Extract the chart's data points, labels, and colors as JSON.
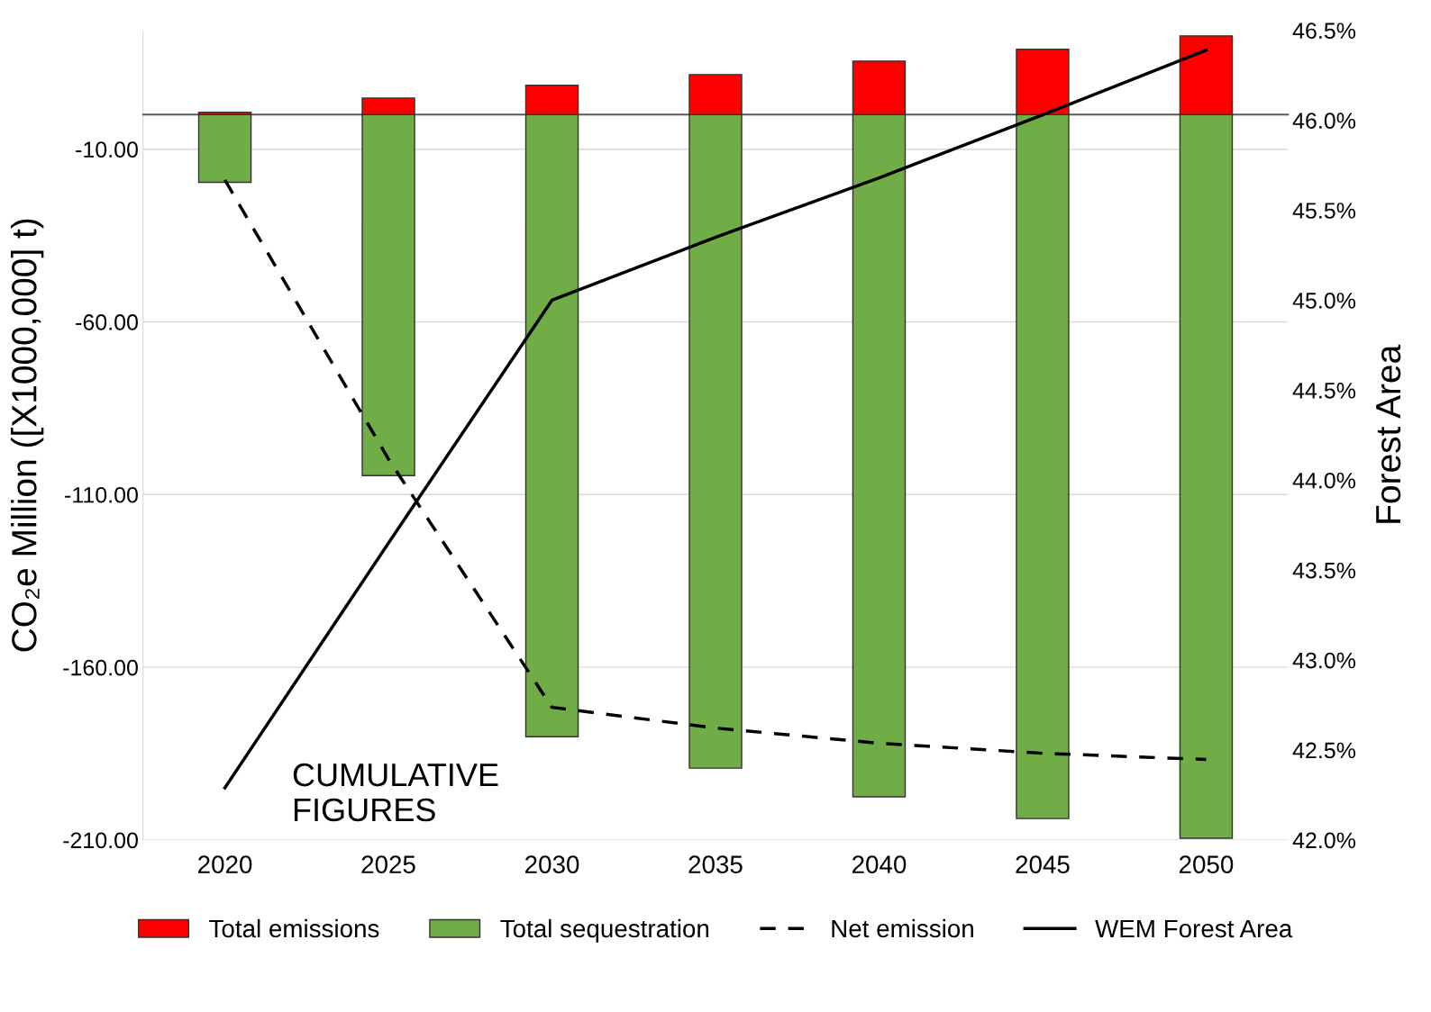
{
  "chart_data": {
    "type": "bar",
    "stacked": true,
    "categories": [
      "2020",
      "2025",
      "2030",
      "2035",
      "2040",
      "2045",
      "2050"
    ],
    "ylabel": "CO₂e Million ([X1000,000] t)",
    "y2label": "Forest Area",
    "ylim": [
      -210,
      24.4
    ],
    "yticks": [
      {
        "value": -10,
        "label": "-10.00"
      },
      {
        "value": -60,
        "label": "-60.00"
      },
      {
        "value": -110,
        "label": "-110.00"
      },
      {
        "value": -160,
        "label": "-160.00"
      },
      {
        "value": -210,
        "label": "-210.00"
      }
    ],
    "y2lim": [
      42.0,
      46.5
    ],
    "y2ticks": [
      {
        "value": 42.0,
        "label": "42.0%"
      },
      {
        "value": 42.5,
        "label": "42.5%"
      },
      {
        "value": 43.0,
        "label": "43.0%"
      },
      {
        "value": 43.5,
        "label": "43.5%"
      },
      {
        "value": 44.0,
        "label": "44.0%"
      },
      {
        "value": 44.5,
        "label": "44.5%"
      },
      {
        "value": 45.0,
        "label": "45.0%"
      },
      {
        "value": 45.5,
        "label": "45.5%"
      },
      {
        "value": 46.0,
        "label": "46.0%"
      },
      {
        "value": 46.5,
        "label": "46.5%"
      }
    ],
    "grid": "y",
    "legend": "bottom",
    "annotations": [
      "CUMULATIVE\nFIGURES"
    ],
    "series": [
      {
        "name": "Total emissions",
        "color": "#ff0000",
        "values": [
          0.7,
          4.8,
          8.5,
          11.6,
          15.5,
          18.9,
          22.8
        ]
      },
      {
        "name": "Total sequestration",
        "color": "#70ad47",
        "values": [
          -19.6,
          -104.5,
          -180.1,
          -189.2,
          -197.5,
          -203.8,
          -209.5
        ]
      },
      {
        "name": "Net emission",
        "type": "line",
        "color": "#000000",
        "line_style": "dashed",
        "marker": "none",
        "values": [
          -18.9,
          -99.7,
          -171.6,
          -177.6,
          -182.0,
          -184.9,
          -186.7
        ]
      },
      {
        "name": "WEM Forest Area",
        "type": "line",
        "axis": "y2",
        "color": "#000000",
        "line_style": "solid",
        "marker": "none",
        "values": [
          42.29,
          43.65,
          45.0,
          45.35,
          45.68,
          46.03,
          46.39
        ]
      }
    ]
  }
}
